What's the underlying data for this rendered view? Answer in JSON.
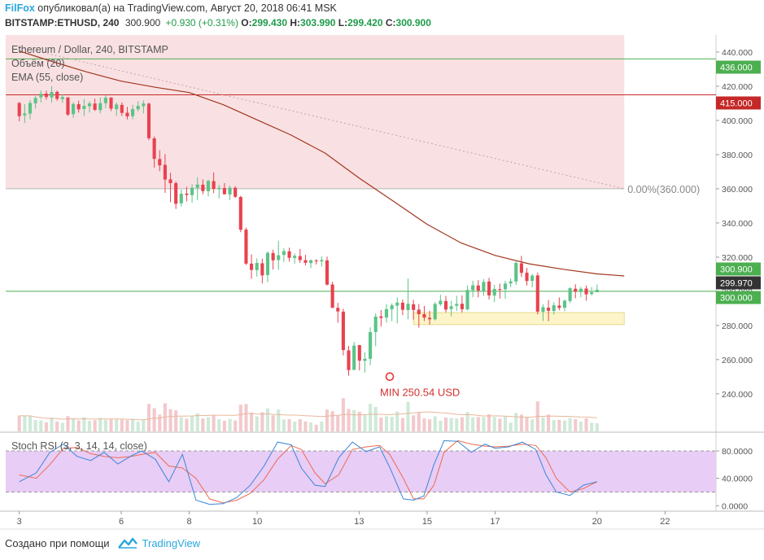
{
  "header": {
    "brand": "FilFox",
    "published": "опубликовал(а) на TradingView.com, Август 20, 2018 06:41 MSK",
    "symbol": "BITSTAMP:ETHUSD, 240",
    "last": "300.900",
    "change": "+0.930 (+0.31%)",
    "o_label": "O:",
    "o_value": "299.430",
    "h_label": "H:",
    "h_value": "303.990",
    "l_label": "L:",
    "l_value": "299.420",
    "c_label": "C:",
    "c_value": "300.900"
  },
  "legend": {
    "title": "Ethereum / Dollar, 240, BITSTAMP",
    "volume": "Объём (20)",
    "ema": "EMA (55, close)"
  },
  "annotations": {
    "fib_label": "0.00%(360.000)",
    "min_label": "MIN 250.54 USD"
  },
  "price_badges": [
    {
      "text": "436.000",
      "color": "#4caf50"
    },
    {
      "text": "415.000",
      "color": "#c62828"
    },
    {
      "text": "300.900",
      "color": "#4caf50"
    },
    {
      "text": "299.970",
      "color": "#333333"
    },
    {
      "text": "300.000",
      "color": "#4caf50"
    }
  ],
  "stoch_panel": {
    "title": "Stoch RSI (3, 3, 14, 14, close)",
    "y_ticks": [
      "80.0000",
      "40.0000",
      "0.0000"
    ]
  },
  "footer": {
    "created": "Создано при помощи",
    "brand": "TradingView"
  },
  "colors": {
    "bull": "#5bc487",
    "bear": "#e8424f",
    "ema": "#a2361e",
    "stoch_k": "#3a86d8",
    "stoch_d": "#ee6a50",
    "fill_pink": "#f9e1e3",
    "fill_yellow": "#fdf5c9",
    "fill_purple": "#e8cdf6",
    "green_line": "#4caf50",
    "red_line": "#c62828"
  },
  "chart_data": {
    "type": "candlestick",
    "title": "Ethereum / Dollar, 240, BITSTAMP",
    "y_range": [
      218,
      450
    ],
    "y_ticks": [
      240,
      260,
      280,
      300,
      320,
      340,
      360,
      380,
      400,
      420,
      440
    ],
    "x_range": [
      2.6,
      23.5
    ],
    "x_ticks": [
      "3",
      "6",
      "8",
      "10",
      "13",
      "15",
      "17",
      "20",
      "22"
    ],
    "horizontal_lines": [
      {
        "value": 436,
        "color": "green"
      },
      {
        "value": 415,
        "color": "red"
      },
      {
        "value": 360,
        "color": "gray"
      },
      {
        "value": 300,
        "color": "green"
      }
    ],
    "zones": [
      {
        "from": 360,
        "to": 450,
        "color": "pink"
      },
      {
        "from": 280.5,
        "to": 287.5,
        "color": "yellow"
      }
    ],
    "fib_line": {
      "start": [
        3.0,
        443
      ],
      "end": [
        20.8,
        360
      ]
    },
    "min_marker": {
      "x": 13.9,
      "y": 250.54
    },
    "candles": [
      [
        410.2,
        410.8,
        399.5,
        402.5
      ],
      [
        403,
        409.5,
        398.5,
        404.1
      ],
      [
        404,
        411.9,
        400.6,
        410.2
      ],
      [
        410,
        414.2,
        406.9,
        413.2
      ],
      [
        413.5,
        417.5,
        410.5,
        415.6
      ],
      [
        415.7,
        417.4,
        412.1,
        413.7
      ],
      [
        413.5,
        420,
        410.5,
        416.6
      ],
      [
        416.7,
        417.5,
        411.5,
        412.6
      ],
      [
        412.5,
        415.2,
        410.3,
        413.7
      ],
      [
        413.5,
        413.6,
        402.6,
        403.4
      ],
      [
        403.7,
        410.6,
        401.6,
        409.6
      ],
      [
        409.5,
        411.6,
        404.6,
        406.5
      ],
      [
        406.7,
        412.5,
        402.6,
        408.5
      ],
      [
        408.3,
        411.2,
        404.6,
        410
      ],
      [
        409.9,
        412.8,
        405.5,
        406.2
      ],
      [
        406,
        413.4,
        404.1,
        410.1
      ],
      [
        410.1,
        414.8,
        407.2,
        413.3
      ],
      [
        413.4,
        413.6,
        405.5,
        406.9
      ],
      [
        406.6,
        410.5,
        402.6,
        409.3
      ],
      [
        409.1,
        410.5,
        402.6,
        404.4
      ],
      [
        404.5,
        407.9,
        400.6,
        402.4
      ],
      [
        402.5,
        409.2,
        400.7,
        406.6
      ],
      [
        406.5,
        411.2,
        405.3,
        408.5
      ],
      [
        408.3,
        411.6,
        404.1,
        409.9
      ],
      [
        409.8,
        410.5,
        388.4,
        389.6
      ],
      [
        389.5,
        390.6,
        372.4,
        377.5
      ],
      [
        377.4,
        382.6,
        370.3,
        373.7
      ],
      [
        374,
        380.3,
        357.6,
        365.4
      ],
      [
        365.5,
        369.4,
        352.2,
        363.3
      ],
      [
        363.3,
        364.4,
        348.2,
        351.2
      ],
      [
        351.5,
        359.5,
        349.6,
        357.1
      ],
      [
        357.2,
        361.2,
        352.6,
        356.4
      ],
      [
        356.3,
        362.6,
        351.8,
        360.6
      ],
      [
        360.5,
        366.8,
        353.4,
        362.5
      ],
      [
        362.4,
        365.5,
        356.8,
        358.6
      ],
      [
        358.6,
        365.3,
        355.5,
        364.6
      ],
      [
        364.5,
        369.6,
        357.4,
        359.9
      ],
      [
        359.8,
        362.4,
        354.3,
        360.5
      ],
      [
        360.4,
        363.3,
        356.6,
        356.8
      ],
      [
        356.7,
        361.8,
        353.4,
        360.6
      ],
      [
        360.6,
        361.5,
        354.6,
        355.3
      ],
      [
        355.2,
        355.9,
        334.6,
        336
      ],
      [
        336.1,
        337.3,
        315.4,
        316.2
      ],
      [
        316.2,
        321.6,
        307.4,
        312.5
      ],
      [
        312.4,
        319.3,
        308.6,
        316.6
      ],
      [
        316.4,
        319.1,
        304.6,
        309.3
      ],
      [
        309.5,
        323.3,
        305.3,
        322.5
      ],
      [
        322.4,
        324.3,
        312.7,
        318.1
      ],
      [
        318.3,
        329.6,
        312.6,
        321.1
      ],
      [
        321.3,
        325.2,
        317.2,
        323.5
      ],
      [
        323.4,
        325.5,
        317.4,
        319.6
      ],
      [
        319.5,
        322.2,
        316.2,
        320.8
      ],
      [
        320.6,
        324.8,
        316.6,
        318.3
      ],
      [
        318.2,
        321.3,
        315.2,
        316.7
      ],
      [
        316.5,
        318.6,
        313.5,
        318.2
      ],
      [
        318,
        318.8,
        315.7,
        317.6
      ],
      [
        317.5,
        320.4,
        314.5,
        318.3
      ],
      [
        318.1,
        320.3,
        303.4,
        303.9
      ],
      [
        304,
        305.6,
        290.1,
        290.4
      ],
      [
        290.3,
        293.2,
        281.6,
        288.2
      ],
      [
        288.1,
        289.8,
        262.5,
        265.6
      ],
      [
        265.4,
        268,
        250.54,
        253.9
      ],
      [
        254,
        270.4,
        253.9,
        268.2
      ],
      [
        268.5,
        268.6,
        253.6,
        259.4
      ],
      [
        259.3,
        264.3,
        252.4,
        260.5
      ],
      [
        260.5,
        278.9,
        256.7,
        276.1
      ],
      [
        276.2,
        287.2,
        267.9,
        285.2
      ],
      [
        285.3,
        289,
        279.3,
        284.4
      ],
      [
        284.6,
        292.4,
        281.6,
        289.6
      ],
      [
        289.5,
        292.9,
        282.5,
        291.8
      ],
      [
        291.6,
        296.4,
        281.3,
        293.4
      ],
      [
        293.3,
        295.2,
        286,
        289.2
      ],
      [
        289,
        307.5,
        283.6,
        292.7
      ],
      [
        292.4,
        295,
        283.4,
        289.1
      ],
      [
        289.3,
        292.6,
        278.7,
        286.6
      ],
      [
        286.6,
        291.4,
        282.6,
        284.6
      ],
      [
        284.5,
        288.6,
        280.5,
        283.6
      ],
      [
        283.6,
        293.7,
        282.9,
        292.6
      ],
      [
        292.4,
        298,
        291.4,
        294.5
      ],
      [
        294.3,
        297.3,
        287.6,
        289.3
      ],
      [
        289.6,
        294.5,
        285.3,
        291.2
      ],
      [
        291.5,
        297.4,
        288.5,
        292.6
      ],
      [
        292.7,
        297.6,
        287.6,
        289.5
      ],
      [
        289.4,
        303.5,
        288.8,
        300.8
      ],
      [
        300.6,
        306.2,
        296.5,
        303.5
      ],
      [
        303.4,
        306.5,
        296.4,
        300.4
      ],
      [
        300.3,
        307.2,
        297.3,
        305.5
      ],
      [
        305.7,
        307.9,
        295.2,
        297.6
      ],
      [
        297.5,
        303.8,
        293.6,
        301.4
      ],
      [
        301.3,
        304.5,
        295.8,
        301.2
      ],
      [
        301.2,
        306.2,
        295.6,
        304.5
      ],
      [
        304.6,
        307.5,
        302.4,
        305.8
      ],
      [
        305.7,
        317.6,
        303.8,
        316.6
      ],
      [
        316.4,
        320.7,
        308.4,
        310.8
      ],
      [
        310.9,
        313.7,
        303.4,
        306
      ],
      [
        306.1,
        310.2,
        302.3,
        309.2
      ],
      [
        309.3,
        311,
        286.5,
        288.1
      ],
      [
        288,
        292.4,
        282.6,
        290.7
      ],
      [
        290.4,
        294.8,
        282.5,
        288.6
      ],
      [
        288.5,
        293.6,
        286.4,
        291.8
      ],
      [
        291.6,
        296.4,
        288.9,
        290.3
      ],
      [
        290.4,
        295.2,
        288.3,
        294.5
      ],
      [
        294.3,
        302.4,
        293.1,
        301.8
      ],
      [
        301.5,
        304.1,
        295.9,
        299.8
      ],
      [
        299.6,
        302.6,
        296.5,
        301.5
      ],
      [
        301.6,
        303.4,
        294.5,
        298.2
      ],
      [
        298.4,
        302.5,
        297.5,
        299.4
      ],
      [
        299.43,
        303.99,
        299.42,
        300.9
      ]
    ],
    "ema_55": [
      [
        3.0,
        440.6
      ],
      [
        4.0,
        434.3
      ],
      [
        5.0,
        428.3
      ],
      [
        6.0,
        423.0
      ],
      [
        7.0,
        419.4
      ],
      [
        8.0,
        416.3
      ],
      [
        9.0,
        409.2
      ],
      [
        10.0,
        400.3
      ],
      [
        11.0,
        391.4
      ],
      [
        12.0,
        380.9
      ],
      [
        13.0,
        366.3
      ],
      [
        14.0,
        352.8
      ],
      [
        15.0,
        339.2
      ],
      [
        16.0,
        328.3
      ],
      [
        17.0,
        321.0
      ],
      [
        18.0,
        316.1
      ],
      [
        19.0,
        312.9
      ],
      [
        20.0,
        310.2
      ],
      [
        20.8,
        309.0
      ]
    ],
    "volume_panel": {
      "series": "Объём (20)"
    },
    "stoch_rsi": {
      "y_range": [
        -8,
        105
      ],
      "levels": [
        80,
        20
      ],
      "k": [
        [
          3.0,
          35
        ],
        [
          3.5,
          48
        ],
        [
          3.9,
          78
        ],
        [
          4.3,
          90
        ],
        [
          4.7,
          72
        ],
        [
          5.1,
          66
        ],
        [
          5.5,
          78
        ],
        [
          5.9,
          61
        ],
        [
          6.3,
          73
        ],
        [
          6.6,
          80
        ],
        [
          7.0,
          68
        ],
        [
          7.4,
          35
        ],
        [
          7.8,
          75
        ],
        [
          8.2,
          8
        ],
        [
          8.6,
          2
        ],
        [
          9.0,
          3
        ],
        [
          9.4,
          12
        ],
        [
          9.8,
          30
        ],
        [
          10.2,
          58
        ],
        [
          10.6,
          93
        ],
        [
          11.0,
          89
        ],
        [
          11.3,
          55
        ],
        [
          11.7,
          30
        ],
        [
          12.0,
          28
        ],
        [
          12.4,
          70
        ],
        [
          12.8,
          93
        ],
        [
          13.2,
          79
        ],
        [
          13.6,
          86
        ],
        [
          13.9,
          56
        ],
        [
          14.3,
          10
        ],
        [
          14.6,
          8
        ],
        [
          14.9,
          14
        ],
        [
          15.2,
          60
        ],
        [
          15.5,
          95
        ],
        [
          15.9,
          94
        ],
        [
          16.3,
          78
        ],
        [
          16.7,
          90
        ],
        [
          17.0,
          84
        ],
        [
          17.4,
          86
        ],
        [
          17.8,
          93
        ],
        [
          18.2,
          82
        ],
        [
          18.5,
          45
        ],
        [
          18.8,
          20
        ],
        [
          19.2,
          15
        ],
        [
          19.6,
          30
        ],
        [
          20.0,
          35
        ]
      ],
      "d": [
        [
          3.0,
          45
        ],
        [
          3.5,
          40
        ],
        [
          3.9,
          60
        ],
        [
          4.3,
          84
        ],
        [
          4.7,
          85
        ],
        [
          5.1,
          76
        ],
        [
          5.5,
          72
        ],
        [
          5.9,
          70
        ],
        [
          6.3,
          72
        ],
        [
          6.6,
          75
        ],
        [
          7.0,
          78
        ],
        [
          7.4,
          58
        ],
        [
          7.8,
          55
        ],
        [
          8.2,
          40
        ],
        [
          8.6,
          10
        ],
        [
          9.0,
          4
        ],
        [
          9.4,
          8
        ],
        [
          9.8,
          18
        ],
        [
          10.2,
          38
        ],
        [
          10.6,
          68
        ],
        [
          11.0,
          88
        ],
        [
          11.3,
          82
        ],
        [
          11.7,
          48
        ],
        [
          12.0,
          32
        ],
        [
          12.4,
          45
        ],
        [
          12.8,
          82
        ],
        [
          13.2,
          86
        ],
        [
          13.6,
          88
        ],
        [
          13.9,
          75
        ],
        [
          14.3,
          40
        ],
        [
          14.6,
          10
        ],
        [
          14.9,
          10
        ],
        [
          15.2,
          30
        ],
        [
          15.5,
          78
        ],
        [
          15.9,
          95
        ],
        [
          16.3,
          90
        ],
        [
          16.7,
          87
        ],
        [
          17.0,
          86
        ],
        [
          17.4,
          87
        ],
        [
          17.8,
          90
        ],
        [
          18.2,
          88
        ],
        [
          18.5,
          70
        ],
        [
          18.8,
          40
        ],
        [
          19.2,
          20
        ],
        [
          19.6,
          25
        ],
        [
          20.0,
          35
        ]
      ]
    }
  }
}
